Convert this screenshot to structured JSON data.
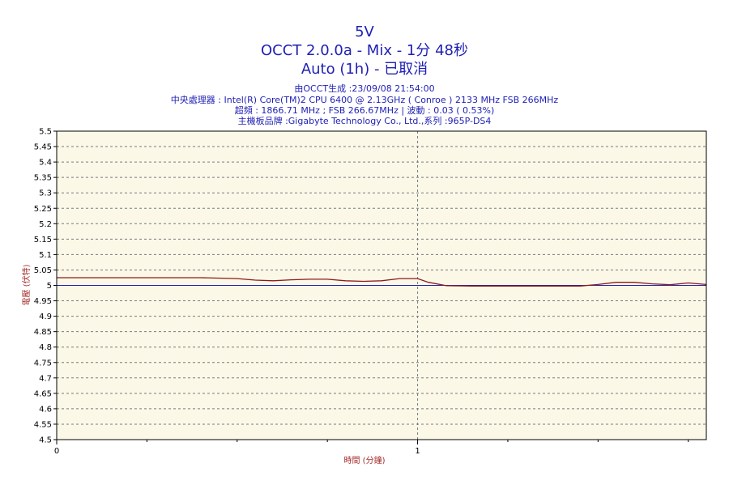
{
  "header": {
    "title": "5V",
    "subtitle": "OCCT 2.0.0a - Mix - 1分 48秒",
    "status": "Auto (1h) - 已取消",
    "info_generated": "由OCCT生成 :23/09/08 21:54:00",
    "info_cpu": "中央處理器 : Intel(R) Core(TM)2 CPU 6400 @ 2.13GHz ( Conroe ) 2133 MHz FSB 266MHz",
    "info_freq": "超頻 : 1866.71 MHz ; FSB 266.67MHz | 波動 : 0.03 ( 0.53%)",
    "info_board": "主機板品牌 :Gigabyte Technology Co., Ltd.,系列 :965P-DS4"
  },
  "chart_data": {
    "type": "line",
    "title": "5V",
    "xlabel": "時間 (分鐘)",
    "ylabel": "電壓 (伏特)",
    "xlim": [
      0,
      1.8
    ],
    "ylim": [
      4.5,
      5.5
    ],
    "x_tick_labels": [
      "0",
      "1"
    ],
    "y_tick_labels": [
      "5.5",
      "5.45",
      "5.4",
      "5.35",
      "5.3",
      "5.25",
      "5.2",
      "5.15",
      "5.1",
      "5.05",
      "5",
      "4.95",
      "4.9",
      "4.85",
      "4.8",
      "4.75",
      "4.7",
      "4.65",
      "4.6",
      "4.55",
      "4.5"
    ],
    "grid": true,
    "reference_line": 5.0,
    "series": [
      {
        "name": "",
        "color": "#8b1a1a",
        "x": [
          0,
          0.05,
          0.1,
          0.2,
          0.3,
          0.4,
          0.5,
          0.55,
          0.6,
          0.65,
          0.7,
          0.75,
          0.8,
          0.85,
          0.9,
          0.95,
          1.0,
          1.03,
          1.08,
          1.15,
          1.25,
          1.35,
          1.45,
          1.5,
          1.55,
          1.6,
          1.65,
          1.7,
          1.75,
          1.8
        ],
        "y": [
          5.025,
          5.025,
          5.025,
          5.025,
          5.025,
          5.025,
          5.022,
          5.017,
          5.015,
          5.018,
          5.02,
          5.02,
          5.015,
          5.013,
          5.015,
          5.022,
          5.022,
          5.01,
          4.999,
          4.998,
          4.998,
          4.998,
          4.998,
          5.003,
          5.01,
          5.01,
          5.005,
          5.002,
          5.008,
          5.003
        ]
      }
    ]
  },
  "colors": {
    "plot_bg": "#fbf8e8",
    "grid": "#7a7a7a",
    "reference": "#1f1fb4",
    "series": "#8b1a1a"
  }
}
